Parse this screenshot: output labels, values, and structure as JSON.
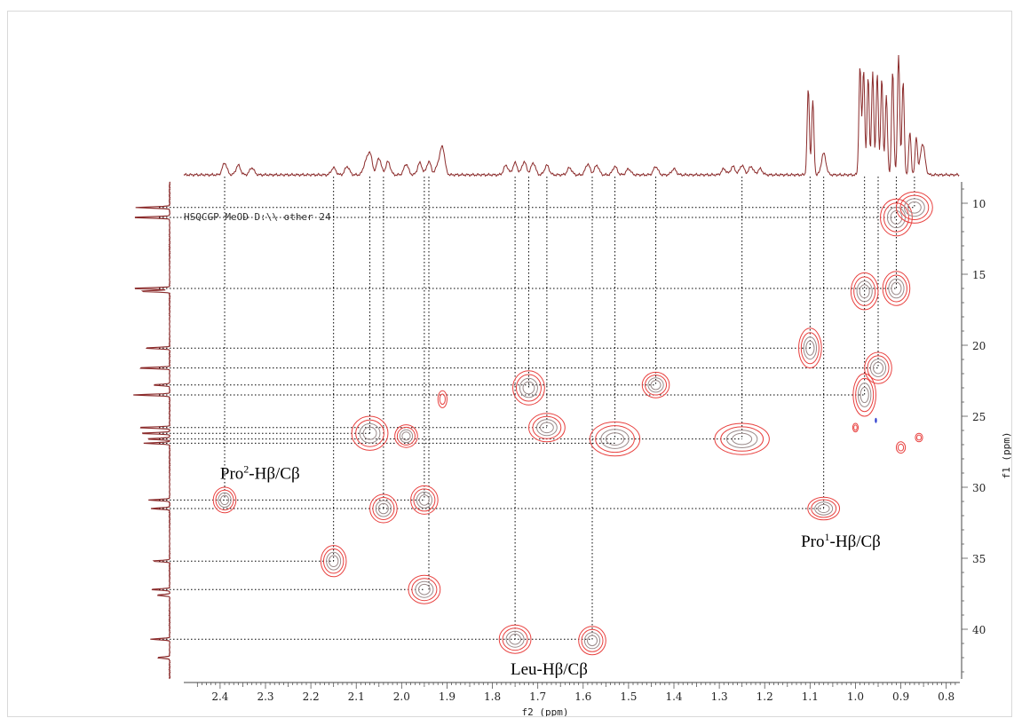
{
  "chart_data": {
    "type": "contour",
    "experiment_label": "HSQCGP MeOD D:\\\\ other 24",
    "xlabel": "f2 (ppm)",
    "ylabel": "f1 (ppm)",
    "xlim": [
      2.48,
      0.77
    ],
    "ylim": [
      8.5,
      43.5
    ],
    "x_ticks": [
      2.4,
      2.3,
      2.2,
      2.1,
      2.0,
      1.9,
      1.8,
      1.7,
      1.6,
      1.5,
      1.4,
      1.3,
      1.2,
      1.1,
      1.0,
      0.9,
      0.8
    ],
    "x_tick_labels": [
      "2.4",
      "2.3",
      "2.2",
      "2.1",
      "2.0",
      "1.9",
      "1.8",
      "1.7",
      "1.6",
      "1.5",
      "1.4",
      "1.3",
      "1.2",
      "1.1",
      "1.0",
      "0.9",
      "0.8"
    ],
    "y_ticks": [
      10,
      15,
      20,
      25,
      30,
      35,
      40
    ],
    "y_tick_labels": [
      "10",
      "15",
      "20",
      "25",
      "30",
      "35",
      "40"
    ],
    "colors": {
      "contour_outer": "#e8413f",
      "contour_inner": "#9a8a8a",
      "spectrum": "#8b2b2b",
      "negative": "#3040d0",
      "guide": "#000000"
    },
    "cross_peaks": [
      {
        "x": 2.39,
        "y": 30.9,
        "w": 0.025,
        "h": 0.9
      },
      {
        "x": 2.15,
        "y": 35.2,
        "w": 0.028,
        "h": 1.1
      },
      {
        "x": 2.07,
        "y": 26.2,
        "w": 0.04,
        "h": 1.2
      },
      {
        "x": 2.04,
        "y": 31.5,
        "w": 0.03,
        "h": 1.0
      },
      {
        "x": 1.99,
        "y": 26.4,
        "w": 0.025,
        "h": 0.8
      },
      {
        "x": 1.95,
        "y": 30.9,
        "w": 0.03,
        "h": 1.0
      },
      {
        "x": 1.95,
        "y": 37.2,
        "w": 0.035,
        "h": 1.0
      },
      {
        "x": 1.91,
        "y": 23.8,
        "w": 0.01,
        "h": 0.6
      },
      {
        "x": 1.75,
        "y": 40.7,
        "w": 0.035,
        "h": 1.0
      },
      {
        "x": 1.72,
        "y": 23.0,
        "w": 0.035,
        "h": 1.2
      },
      {
        "x": 1.68,
        "y": 25.8,
        "w": 0.04,
        "h": 1.0
      },
      {
        "x": 1.58,
        "y": 40.8,
        "w": 0.03,
        "h": 1.0
      },
      {
        "x": 1.53,
        "y": 26.6,
        "w": 0.055,
        "h": 1.2
      },
      {
        "x": 1.44,
        "y": 22.8,
        "w": 0.03,
        "h": 0.9
      },
      {
        "x": 1.25,
        "y": 26.6,
        "w": 0.06,
        "h": 1.1
      },
      {
        "x": 1.1,
        "y": 20.2,
        "w": 0.025,
        "h": 1.4
      },
      {
        "x": 1.07,
        "y": 31.5,
        "w": 0.035,
        "h": 0.8
      },
      {
        "x": 0.98,
        "y": 16.2,
        "w": 0.03,
        "h": 1.3
      },
      {
        "x": 0.98,
        "y": 23.5,
        "w": 0.025,
        "h": 1.5
      },
      {
        "x": 0.95,
        "y": 21.6,
        "w": 0.03,
        "h": 1.1
      },
      {
        "x": 0.91,
        "y": 16.0,
        "w": 0.03,
        "h": 1.2
      },
      {
        "x": 0.91,
        "y": 11.0,
        "w": 0.035,
        "h": 1.3
      },
      {
        "x": 0.87,
        "y": 10.3,
        "w": 0.04,
        "h": 1.1
      },
      {
        "x": 1.0,
        "y": 25.8,
        "w": 0.006,
        "h": 0.3
      },
      {
        "x": 0.9,
        "y": 27.2,
        "w": 0.01,
        "h": 0.4
      },
      {
        "x": 0.86,
        "y": 26.5,
        "w": 0.008,
        "h": 0.3
      }
    ],
    "negative_peaks": [
      {
        "x": 0.955,
        "y": 25.3
      }
    ],
    "guides_v": [
      {
        "x": 2.39,
        "y": 30.9
      },
      {
        "x": 2.15,
        "y": 35.2
      },
      {
        "x": 2.07,
        "y": 26.2
      },
      {
        "x": 2.04,
        "y": 31.5
      },
      {
        "x": 1.95,
        "y": 30.9
      },
      {
        "x": 1.94,
        "y": 37.2
      },
      {
        "x": 1.75,
        "y": 40.7
      },
      {
        "x": 1.72,
        "y": 23.0
      },
      {
        "x": 1.68,
        "y": 25.8
      },
      {
        "x": 1.58,
        "y": 40.8
      },
      {
        "x": 1.53,
        "y": 26.6
      },
      {
        "x": 1.44,
        "y": 22.8
      },
      {
        "x": 1.25,
        "y": 26.6
      },
      {
        "x": 1.1,
        "y": 20.2
      },
      {
        "x": 1.07,
        "y": 31.5
      },
      {
        "x": 0.98,
        "y": 23.5
      },
      {
        "x": 0.95,
        "y": 21.6
      },
      {
        "x": 0.91,
        "y": 16.0
      },
      {
        "x": 0.87,
        "y": 10.3
      }
    ],
    "guides_h": [
      {
        "y": 10.3,
        "x": 0.87
      },
      {
        "y": 11.0,
        "x": 0.91
      },
      {
        "y": 16.0,
        "x": 0.91
      },
      {
        "y": 20.2,
        "x": 1.1
      },
      {
        "y": 21.6,
        "x": 0.95
      },
      {
        "y": 22.8,
        "x": 1.44
      },
      {
        "y": 23.5,
        "x": 0.98
      },
      {
        "y": 25.8,
        "x": 1.68
      },
      {
        "y": 26.2,
        "x": 2.07
      },
      {
        "y": 26.6,
        "x": 1.25
      },
      {
        "y": 26.9,
        "x": 1.53
      },
      {
        "y": 30.9,
        "x": 1.95
      },
      {
        "y": 31.5,
        "x": 1.07
      },
      {
        "y": 35.2,
        "x": 2.15
      },
      {
        "y": 37.2,
        "x": 1.95
      },
      {
        "y": 40.7,
        "x": 1.58
      }
    ],
    "annotations": [
      {
        "text_main": "Pro",
        "sup": "2",
        "text_rest": "-Hβ/Cβ",
        "x": 2.4,
        "y": 29.4
      },
      {
        "text_main": "Pro",
        "sup": "1",
        "text_rest": "-Hβ/Cβ",
        "x": 1.12,
        "y": 34.2
      },
      {
        "text_main": "Leu-Hβ/Cβ",
        "sup": "",
        "text_rest": "",
        "x": 1.76,
        "y": 43.2
      }
    ],
    "f2_projection_peaks": [
      {
        "x": 2.39,
        "h": 0.1
      },
      {
        "x": 2.36,
        "h": 0.08
      },
      {
        "x": 2.33,
        "h": 0.06
      },
      {
        "x": 2.15,
        "h": 0.06
      },
      {
        "x": 2.12,
        "h": 0.07
      },
      {
        "x": 2.08,
        "h": 0.09
      },
      {
        "x": 2.07,
        "h": 0.18
      },
      {
        "x": 2.05,
        "h": 0.14
      },
      {
        "x": 2.03,
        "h": 0.11
      },
      {
        "x": 1.99,
        "h": 0.09
      },
      {
        "x": 1.96,
        "h": 0.1
      },
      {
        "x": 1.94,
        "h": 0.11
      },
      {
        "x": 1.92,
        "h": 0.08
      },
      {
        "x": 1.91,
        "h": 0.23
      },
      {
        "x": 1.77,
        "h": 0.08
      },
      {
        "x": 1.75,
        "h": 0.1
      },
      {
        "x": 1.73,
        "h": 0.11
      },
      {
        "x": 1.71,
        "h": 0.1
      },
      {
        "x": 1.68,
        "h": 0.08
      },
      {
        "x": 1.63,
        "h": 0.06
      },
      {
        "x": 1.59,
        "h": 0.09
      },
      {
        "x": 1.57,
        "h": 0.08
      },
      {
        "x": 1.53,
        "h": 0.07
      },
      {
        "x": 1.5,
        "h": 0.05
      },
      {
        "x": 1.44,
        "h": 0.07
      },
      {
        "x": 1.4,
        "h": 0.05
      },
      {
        "x": 1.29,
        "h": 0.05
      },
      {
        "x": 1.27,
        "h": 0.07
      },
      {
        "x": 1.25,
        "h": 0.08
      },
      {
        "x": 1.23,
        "h": 0.07
      },
      {
        "x": 1.21,
        "h": 0.05
      },
      {
        "x": 1.104,
        "h": 0.72
      },
      {
        "x": 1.094,
        "h": 0.62
      },
      {
        "x": 1.07,
        "h": 0.18
      },
      {
        "x": 0.99,
        "h": 0.9
      },
      {
        "x": 0.982,
        "h": 0.88
      },
      {
        "x": 0.972,
        "h": 0.82
      },
      {
        "x": 0.962,
        "h": 0.86
      },
      {
        "x": 0.952,
        "h": 0.84
      },
      {
        "x": 0.942,
        "h": 0.8
      },
      {
        "x": 0.932,
        "h": 0.66
      },
      {
        "x": 0.918,
        "h": 0.86
      },
      {
        "x": 0.905,
        "h": 1.0
      },
      {
        "x": 0.895,
        "h": 0.78
      },
      {
        "x": 0.88,
        "h": 0.36
      },
      {
        "x": 0.866,
        "h": 0.32
      },
      {
        "x": 0.852,
        "h": 0.26
      }
    ],
    "f1_projection_peaks": [
      {
        "y": 10.3,
        "h": 0.8
      },
      {
        "y": 11.0,
        "h": 0.9
      },
      {
        "y": 16.0,
        "h": 0.9
      },
      {
        "y": 16.2,
        "h": 0.7
      },
      {
        "y": 20.2,
        "h": 0.6
      },
      {
        "y": 21.6,
        "h": 0.75
      },
      {
        "y": 22.8,
        "h": 0.4
      },
      {
        "y": 23.5,
        "h": 0.85
      },
      {
        "y": 25.8,
        "h": 0.75
      },
      {
        "y": 26.2,
        "h": 0.7
      },
      {
        "y": 26.6,
        "h": 0.55
      },
      {
        "y": 26.9,
        "h": 0.6
      },
      {
        "y": 30.9,
        "h": 0.5
      },
      {
        "y": 31.5,
        "h": 0.45
      },
      {
        "y": 35.2,
        "h": 0.4
      },
      {
        "y": 37.2,
        "h": 0.45
      },
      {
        "y": 37.6,
        "h": 0.3
      },
      {
        "y": 40.7,
        "h": 0.45
      },
      {
        "y": 42.0,
        "h": 0.3
      }
    ]
  }
}
